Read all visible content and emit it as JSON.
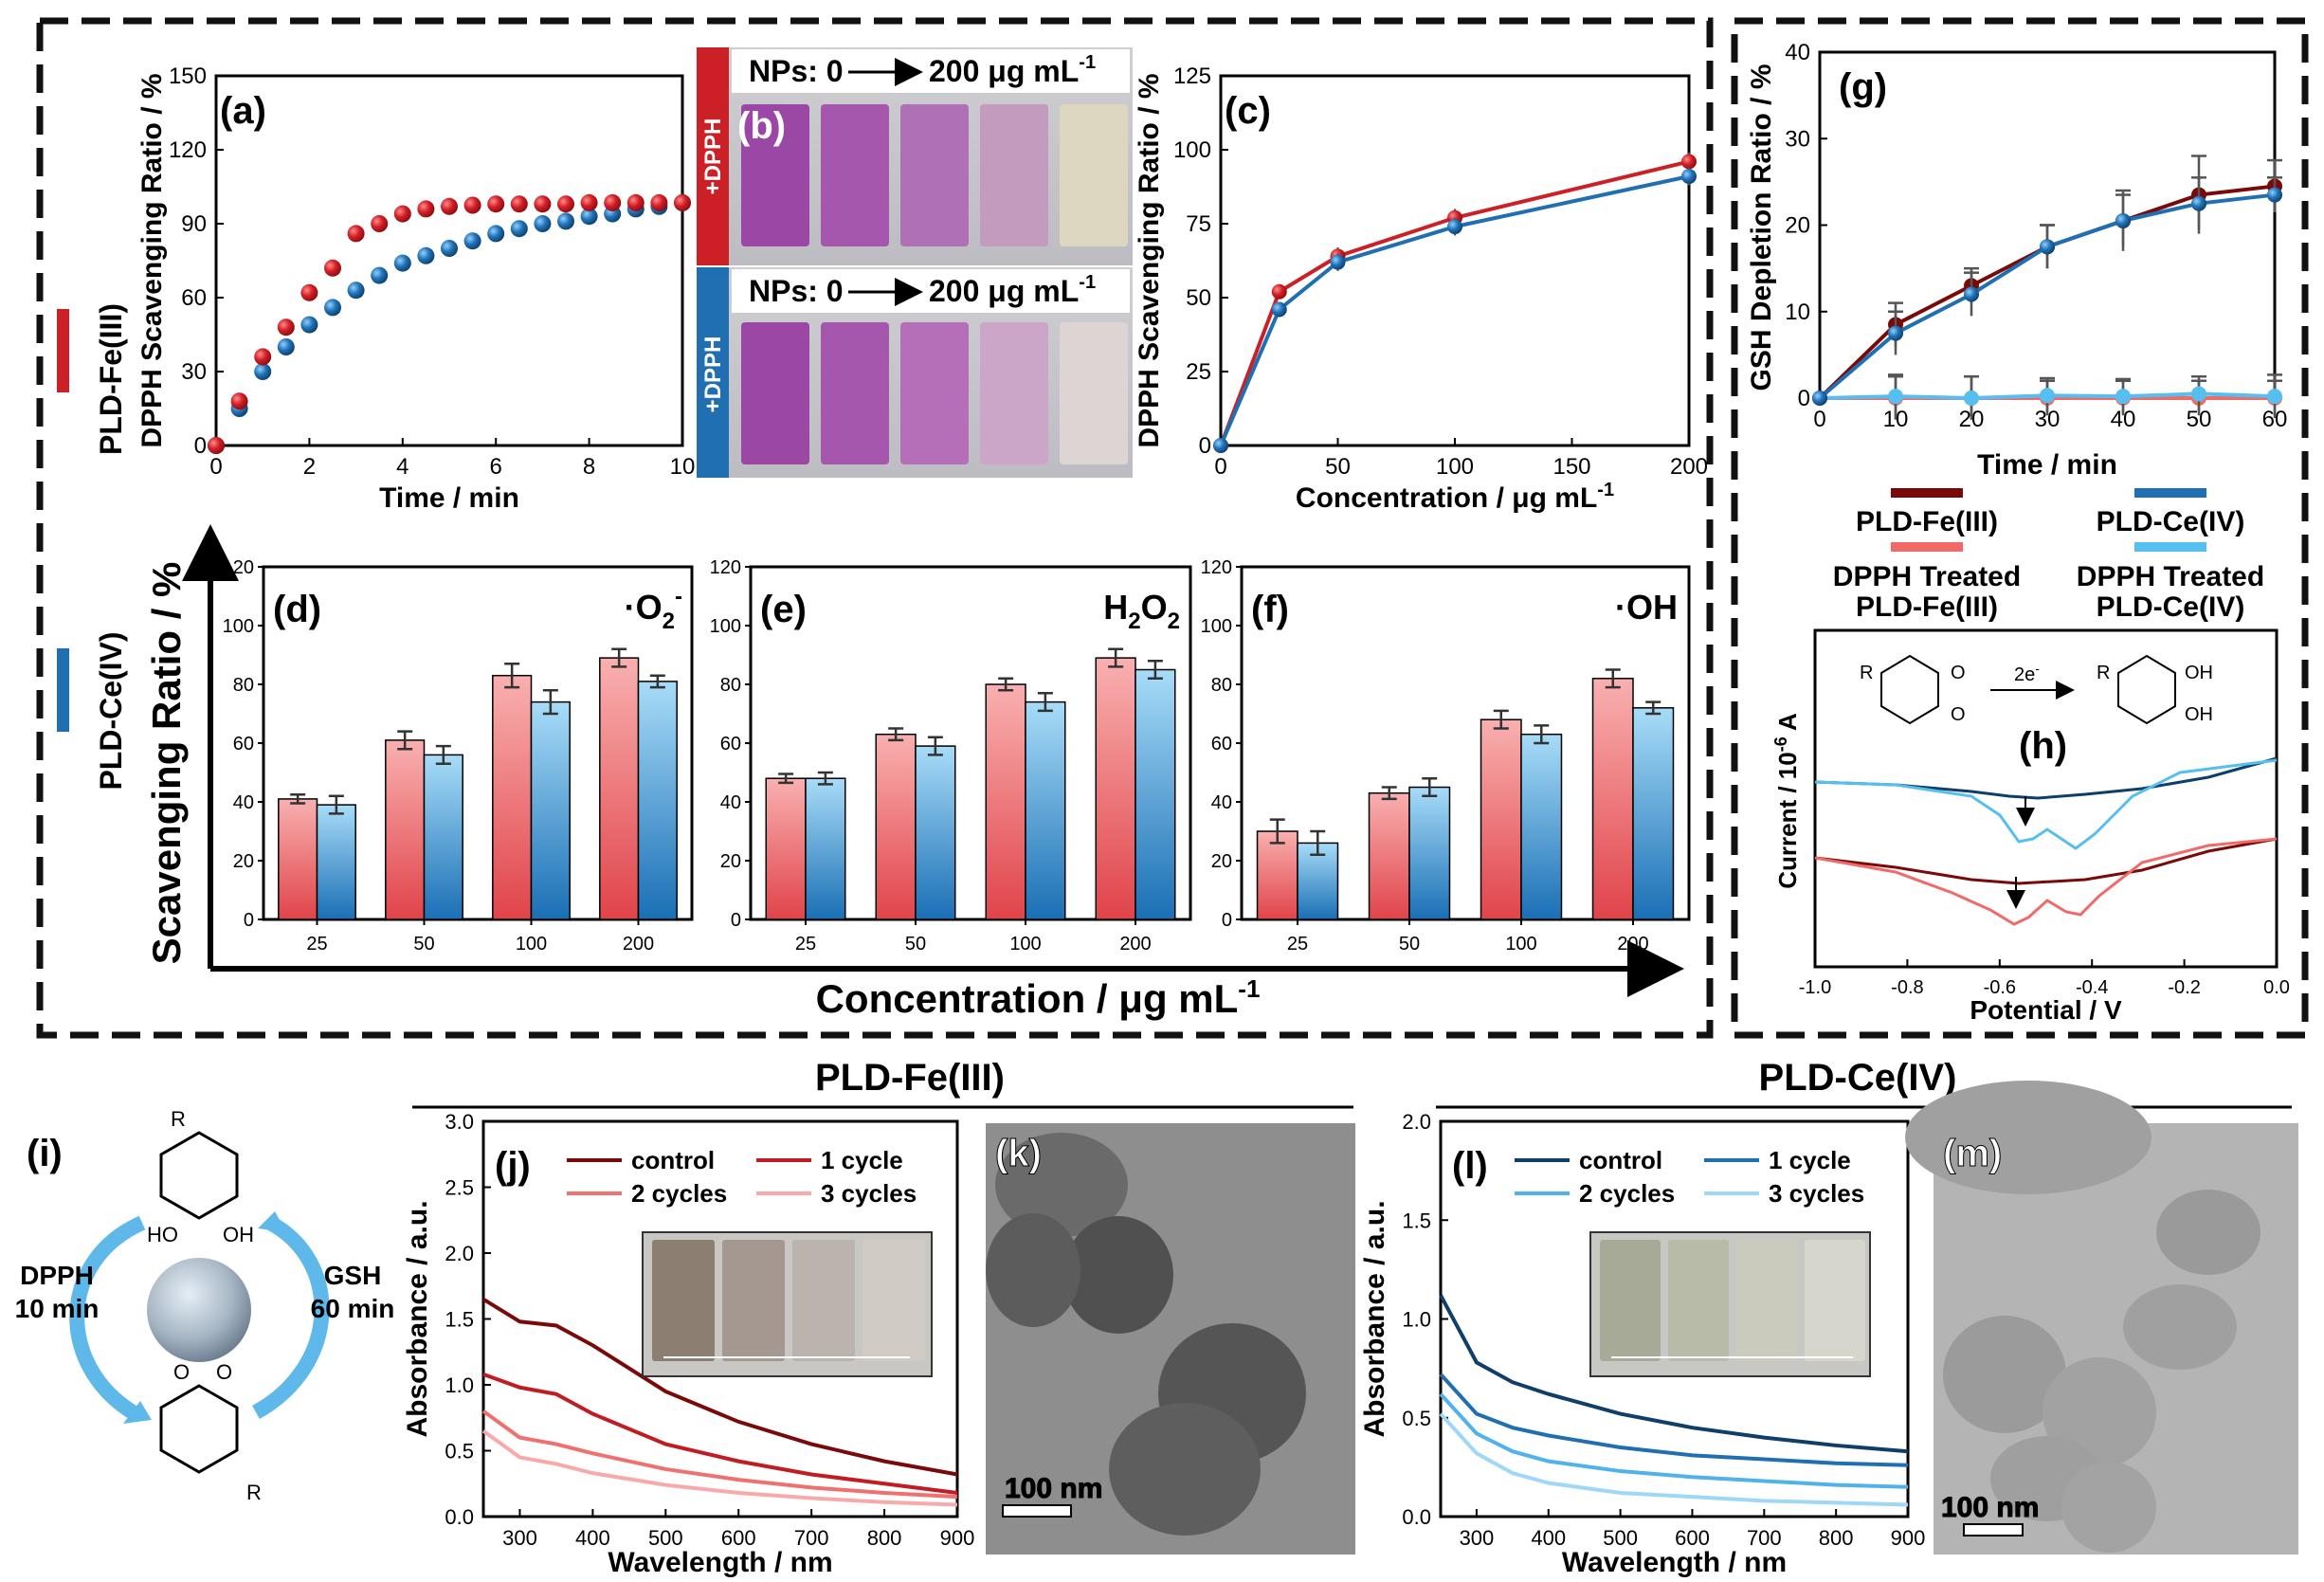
{
  "labels": {
    "fe": "PLD-Fe(III)",
    "ce": "PLD-Ce(IV)",
    "big_ylabel": "Scavenging Ratio / %",
    "big_xlabel": "Concentration / μg mL",
    "big_xlabel_sup": "-1",
    "legend_fe": "PLD-Fe(III)",
    "legend_ce": "PLD-Ce(IV)",
    "legend_fe_treated_1": "DPPH Treated",
    "legend_fe_treated_2": "PLD-Fe(III)",
    "legend_ce_treated_1": "DPPH Treated",
    "legend_ce_treated_2": "PLD-Ce(IV)",
    "section_fe": "PLD-Fe(III)",
    "section_ce": "PLD-Ce(IV)"
  },
  "colors": {
    "fe": "#cc2027",
    "ce": "#1f6fb2",
    "fe_bar_top": "#f79b9b",
    "fe_bar_bottom": "#e0444a",
    "ce_bar_top": "#9ed8f7",
    "ce_bar_bottom": "#1f74b8",
    "fe_dark": "#7a0a0a",
    "fe_light": "#f06a6a",
    "ce_dark": "#0d3f6a",
    "ce_light": "#56bff0"
  },
  "photo_b": {
    "label": "(b)",
    "top_text": "NPs: 0",
    "top_text_end": "200 μg mL",
    "sup": "-1",
    "side_top": "+DPPH",
    "side_bottom": "+DPPH"
  },
  "photo_k": {
    "label": "(k)",
    "scale": "100 nm"
  },
  "photo_m": {
    "label": "(m)",
    "scale": "100 nm"
  },
  "scheme_i": {
    "label": "(i)",
    "left_1": "DPPH",
    "left_2": "10 min",
    "right_1": "GSH",
    "right_2": "60 min",
    "r": "R",
    "oh": "HO",
    "oh2": "OH",
    "o": "O"
  },
  "scheme_h": {
    "r": "R",
    "arrow": "2e",
    "arrow_sup": "-",
    "o": "O",
    "oh": "OH"
  },
  "chart_data": [
    {
      "panel": "(a)",
      "type": "scatter",
      "xlabel": "Time / min",
      "ylabel": "DPPH Scavenging Ratio / %",
      "xlim": [
        0,
        10
      ],
      "ylim": [
        0,
        150
      ],
      "xticks": [
        0,
        2,
        4,
        6,
        8,
        10
      ],
      "yticks": [
        0,
        30,
        60,
        90,
        120,
        150
      ],
      "series": [
        {
          "x": [
            0,
            0.5,
            1,
            1.5,
            2,
            2.5,
            3,
            3.5,
            4,
            4.5,
            5,
            5.5,
            6,
            6.5,
            7,
            7.5,
            8,
            8.5,
            9,
            9.5,
            10
          ],
          "y": [
            0,
            18,
            36,
            48,
            62,
            72,
            86,
            90,
            94,
            96,
            97,
            97.5,
            98,
            98,
            98,
            98,
            98.5,
            98.5,
            98.5,
            98.5,
            98.5
          ]
        },
        {
          "x": [
            0,
            0.5,
            1,
            1.5,
            2,
            2.5,
            3,
            3.5,
            4,
            4.5,
            5,
            5.5,
            6,
            6.5,
            7,
            7.5,
            8,
            8.5,
            9,
            9.5,
            10
          ],
          "y": [
            0,
            15,
            30,
            40,
            49,
            56,
            63,
            69,
            74,
            77,
            80,
            83,
            86,
            88,
            90,
            91,
            93,
            94,
            96,
            97,
            98.5
          ]
        }
      ]
    },
    {
      "panel": "(c)",
      "type": "line",
      "xlabel": "Concentration / μg mL",
      "xlabel_sup": "-1",
      "ylabel": "DPPH Scavenging Ratio / %",
      "xlim": [
        0,
        200
      ],
      "ylim": [
        0,
        125
      ],
      "xticks": [
        0,
        50,
        100,
        150,
        200
      ],
      "yticks": [
        0,
        25,
        50,
        75,
        100,
        125
      ],
      "series": [
        {
          "x": [
            0,
            25,
            50,
            100,
            200
          ],
          "y": [
            0,
            52,
            64,
            77,
            96
          ],
          "err": [
            0,
            2,
            3,
            3,
            3
          ]
        },
        {
          "x": [
            0,
            25,
            50,
            100,
            200
          ],
          "y": [
            0,
            46,
            62,
            74,
            91
          ],
          "err": [
            0,
            2,
            3,
            3,
            3
          ]
        }
      ]
    },
    {
      "panel": "(d)",
      "type": "bar",
      "species": "·O",
      "species_sub": "2",
      "species_sup": "-",
      "categories": [
        "25",
        "50",
        "100",
        "200"
      ],
      "ylim": [
        0,
        120
      ],
      "yticks": [
        0,
        20,
        40,
        60,
        80,
        100,
        120
      ],
      "series": [
        {
          "values": [
            41,
            61,
            83,
            89
          ],
          "err": [
            1.5,
            3,
            4,
            3
          ]
        },
        {
          "values": [
            39,
            56,
            74,
            81
          ],
          "err": [
            3,
            3,
            4,
            2
          ]
        }
      ]
    },
    {
      "panel": "(e)",
      "type": "bar",
      "species": "H",
      "species_sub": "2",
      "species_tail": "O",
      "species_sub2": "2",
      "categories": [
        "25",
        "50",
        "100",
        "200"
      ],
      "ylim": [
        0,
        120
      ],
      "yticks": [
        0,
        20,
        40,
        60,
        80,
        100,
        120
      ],
      "series": [
        {
          "values": [
            48,
            63,
            80,
            89
          ],
          "err": [
            1.5,
            2,
            2,
            3
          ]
        },
        {
          "values": [
            48,
            59,
            74,
            85
          ],
          "err": [
            2,
            3,
            3,
            3
          ]
        }
      ]
    },
    {
      "panel": "(f)",
      "type": "bar",
      "species": "·OH",
      "categories": [
        "25",
        "50",
        "100",
        "200"
      ],
      "ylim": [
        0,
        120
      ],
      "yticks": [
        0,
        20,
        40,
        60,
        80,
        100,
        120
      ],
      "series": [
        {
          "values": [
            30,
            43,
            68,
            82
          ],
          "err": [
            4,
            2,
            3,
            3
          ]
        },
        {
          "values": [
            26,
            45,
            63,
            72
          ],
          "err": [
            4,
            3,
            3,
            2
          ]
        }
      ]
    },
    {
      "panel": "(g)",
      "type": "line",
      "xlabel": "Time / min",
      "ylabel": "GSH Depletion Ratio / %",
      "xlim": [
        0,
        60
      ],
      "ylim": [
        0,
        40
      ],
      "xticks": [
        0,
        10,
        20,
        30,
        40,
        50,
        60
      ],
      "yticks": [
        0,
        10,
        20,
        30,
        40
      ],
      "series": [
        {
          "x": [
            0,
            10,
            20,
            30,
            40,
            50,
            60
          ],
          "y": [
            0,
            8.5,
            13,
            17.5,
            20.5,
            23.5,
            24.5
          ],
          "err": [
            0,
            2.5,
            2,
            2.5,
            3.5,
            4.5,
            3
          ]
        },
        {
          "x": [
            0,
            10,
            20,
            30,
            40,
            50,
            60
          ],
          "y": [
            0,
            7.5,
            12,
            17.5,
            20.5,
            22.5,
            23.5
          ],
          "err": [
            0,
            2.5,
            2.5,
            2.5,
            3,
            3,
            2
          ]
        },
        {
          "x": [
            0,
            10,
            20,
            30,
            40,
            50,
            60
          ],
          "y": [
            0,
            0,
            0,
            0,
            0,
            0,
            0
          ],
          "err": [
            0,
            2.5,
            2.5,
            2,
            2,
            2,
            2
          ]
        },
        {
          "x": [
            0,
            10,
            20,
            30,
            40,
            50,
            60
          ],
          "y": [
            0,
            0.2,
            0,
            0.3,
            0.2,
            0.5,
            0.2
          ],
          "err": [
            0,
            2.5,
            2.5,
            2,
            2,
            2,
            2.5
          ]
        }
      ]
    },
    {
      "panel": "(h)",
      "type": "line",
      "xlabel": "Potential / V",
      "ylabel": "Current / 10",
      "ylabel_sup": "-6",
      "ylabel_tail": " A",
      "xlim": [
        -1.0,
        0.0
      ],
      "xticks": [
        -1.0,
        -0.8,
        -0.6,
        -0.4,
        -0.2,
        0.0
      ]
    },
    {
      "panel": "(j)",
      "type": "line",
      "xlabel": "Wavelength / nm",
      "ylabel": "Absorbance / a.u.",
      "xlim": [
        250,
        900
      ],
      "ylim": [
        0,
        3.0
      ],
      "xticks": [
        300,
        400,
        500,
        600,
        700,
        800,
        900
      ],
      "yticks": [
        0.0,
        0.5,
        1.0,
        1.5,
        2.0,
        2.5,
        3.0
      ],
      "series": [
        {
          "name": "control",
          "x": [
            250,
            300,
            350,
            400,
            500,
            600,
            700,
            800,
            900
          ],
          "y": [
            1.65,
            1.48,
            1.45,
            1.3,
            0.95,
            0.72,
            0.55,
            0.42,
            0.32
          ]
        },
        {
          "name": "1 cycle",
          "x": [
            250,
            300,
            350,
            400,
            500,
            600,
            700,
            800,
            900
          ],
          "y": [
            1.08,
            0.98,
            0.93,
            0.78,
            0.55,
            0.42,
            0.32,
            0.25,
            0.18
          ]
        },
        {
          "name": "2 cycles",
          "x": [
            250,
            300,
            350,
            400,
            500,
            600,
            700,
            800,
            900
          ],
          "y": [
            0.8,
            0.6,
            0.55,
            0.48,
            0.36,
            0.28,
            0.22,
            0.18,
            0.15
          ]
        },
        {
          "name": "3 cycles",
          "x": [
            250,
            300,
            350,
            400,
            500,
            600,
            700,
            800,
            900
          ],
          "y": [
            0.65,
            0.45,
            0.4,
            0.33,
            0.24,
            0.18,
            0.14,
            0.11,
            0.09
          ]
        }
      ]
    },
    {
      "panel": "(l)",
      "type": "line",
      "xlabel": "Wavelength / nm",
      "ylabel": "Absorbance / a.u.",
      "xlim": [
        250,
        900
      ],
      "ylim": [
        0,
        2.0
      ],
      "xticks": [
        300,
        400,
        500,
        600,
        700,
        800,
        900
      ],
      "yticks": [
        0.0,
        0.5,
        1.0,
        1.5,
        2.0
      ],
      "series": [
        {
          "name": "control",
          "x": [
            250,
            300,
            350,
            400,
            500,
            600,
            700,
            800,
            900
          ],
          "y": [
            1.12,
            0.78,
            0.68,
            0.62,
            0.52,
            0.45,
            0.4,
            0.36,
            0.33
          ]
        },
        {
          "name": "1 cycle",
          "x": [
            250,
            300,
            350,
            400,
            500,
            600,
            700,
            800,
            900
          ],
          "y": [
            0.72,
            0.52,
            0.45,
            0.41,
            0.35,
            0.31,
            0.29,
            0.27,
            0.26
          ]
        },
        {
          "name": "2 cycles",
          "x": [
            250,
            300,
            350,
            400,
            500,
            600,
            700,
            800,
            900
          ],
          "y": [
            0.62,
            0.42,
            0.33,
            0.28,
            0.23,
            0.2,
            0.18,
            0.16,
            0.15
          ]
        },
        {
          "name": "3 cycles",
          "x": [
            250,
            300,
            350,
            400,
            500,
            600,
            700,
            800,
            900
          ],
          "y": [
            0.52,
            0.32,
            0.22,
            0.17,
            0.12,
            0.1,
            0.08,
            0.07,
            0.06
          ]
        }
      ]
    }
  ]
}
